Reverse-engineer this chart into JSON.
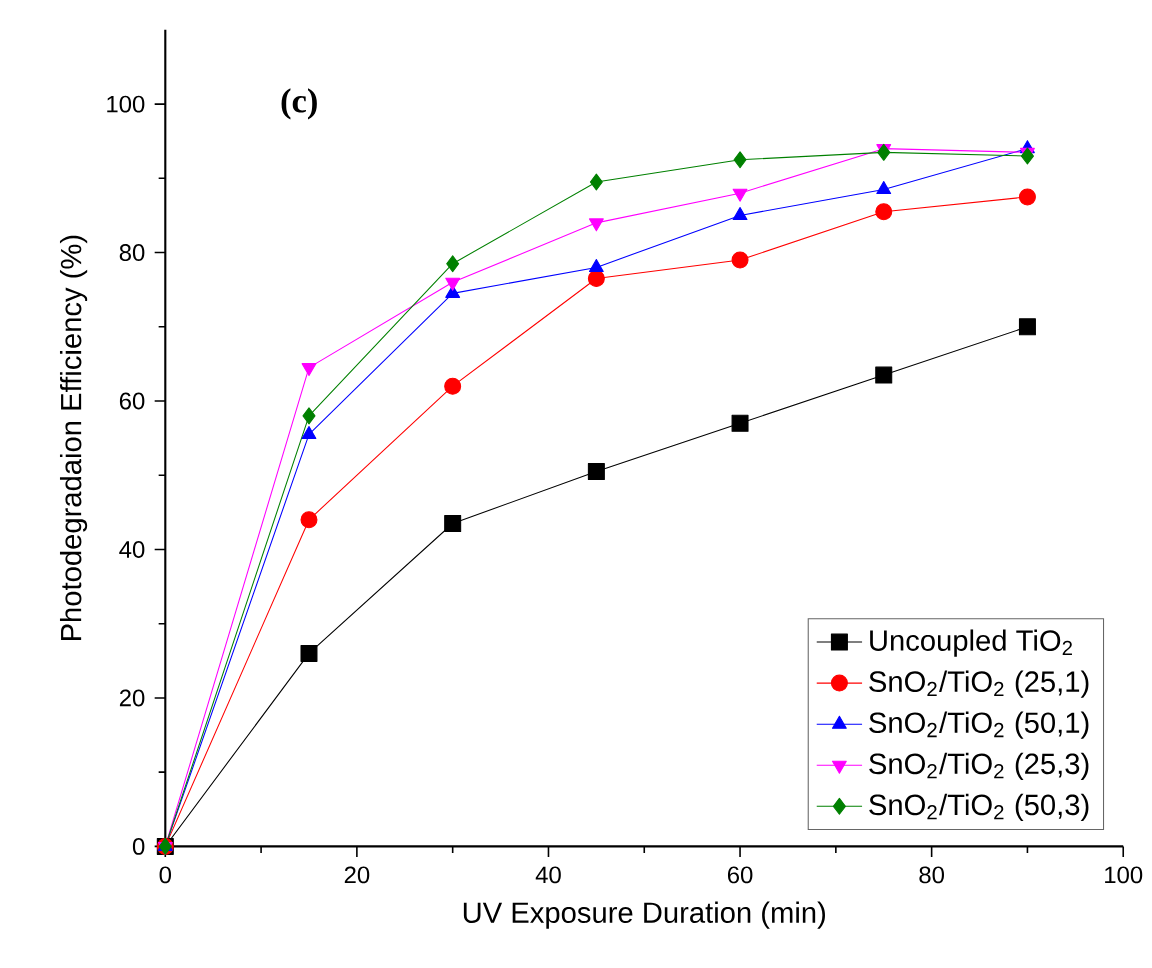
{
  "chart_data": {
    "type": "line",
    "xlabel": "UV Exposure Duration (min)",
    "ylabel": "Photodegradaion Efficiency (%)",
    "annotations": [
      "(c)"
    ],
    "x": [
      0,
      15,
      30,
      45,
      60,
      75,
      90
    ],
    "xlim": [
      0,
      100
    ],
    "ylim": [
      0,
      110
    ],
    "xticks": [
      0,
      20,
      40,
      60,
      80,
      100
    ],
    "yticks": [
      0,
      20,
      40,
      60,
      80,
      100
    ],
    "legend": "bottom right",
    "grid": false,
    "line_style": "solid",
    "series": [
      {
        "name": "Uncoupled TiO$_{2}$",
        "color": "#000000",
        "marker": "square",
        "values": [
          0,
          26,
          43.5,
          50.5,
          57,
          63.5,
          70
        ]
      },
      {
        "name": "SnO$_{2}$/TiO$_{2}$ (25,1)",
        "color": "#ff0000",
        "marker": "circle",
        "values": [
          0,
          44,
          62,
          76.5,
          79,
          85.5,
          87.5
        ]
      },
      {
        "name": "SnO$_{2}$/TiO$_{2}$ (50,1)",
        "color": "#0000ff",
        "marker": "triangle",
        "values": [
          0,
          55.5,
          74.5,
          78,
          85,
          88.5,
          94
        ]
      },
      {
        "name": "SnO$_{2}$/TiO$_{2}$ (25,3)",
        "color": "#ff00ff",
        "marker": "triangle-down",
        "values": [
          0,
          64.5,
          76,
          84,
          88,
          94,
          93.5
        ]
      },
      {
        "name": "SnO$_{2}$/TiO$_{2}$ (50,3)",
        "color": "#008000",
        "marker": "diamond",
        "values": [
          0,
          58,
          78.5,
          89.5,
          92.5,
          93.5,
          93
        ]
      }
    ]
  }
}
